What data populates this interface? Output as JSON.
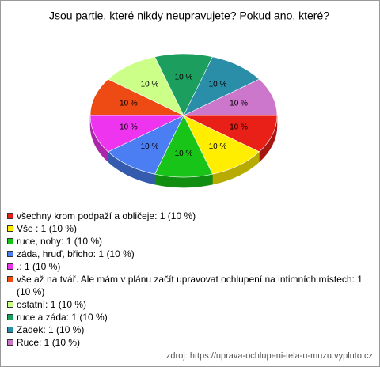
{
  "chart_data": {
    "type": "pie",
    "title": "Jsou partie, které nikdy neupravujete? Pokud ano, které?",
    "categories": [
      "všechny krom podpaží a obličeje: 1 (10 %)",
      "Vše : 1 (10 %)",
      "ruce, nohy: 1 (10 %)",
      "záda, hruď, břicho: 1 (10 %)",
      ".: 1 (10 %)",
      "vše až na tvář. Ale mám v plánu začít upravovat ochlupení na intimních místech: 1 (10 %)",
      "ostatní: 1 (10 %)",
      "ruce a záda: 1 (10 %)",
      "Zadek: 1 (10 %)",
      "Ruce: 1 (10 %)"
    ],
    "values": [
      10,
      10,
      10,
      10,
      10,
      10,
      10,
      10,
      10,
      10
    ],
    "value_labels": [
      "10 %",
      "10 %",
      "10 %",
      "10 %",
      "10 %",
      "10 %",
      "10 %",
      "10 %",
      "10 %",
      "10 %"
    ],
    "colors": [
      "#e82018",
      "#ffee00",
      "#18c418",
      "#4a7ef2",
      "#ee34ee",
      "#ee4a14",
      "#ccff88",
      "#1c9e5e",
      "#2a8ea8",
      "#cc77cc"
    ],
    "source": "zdroj: https://uprava-ochlupeni-tela-u-muzu.vyplnto.cz"
  }
}
